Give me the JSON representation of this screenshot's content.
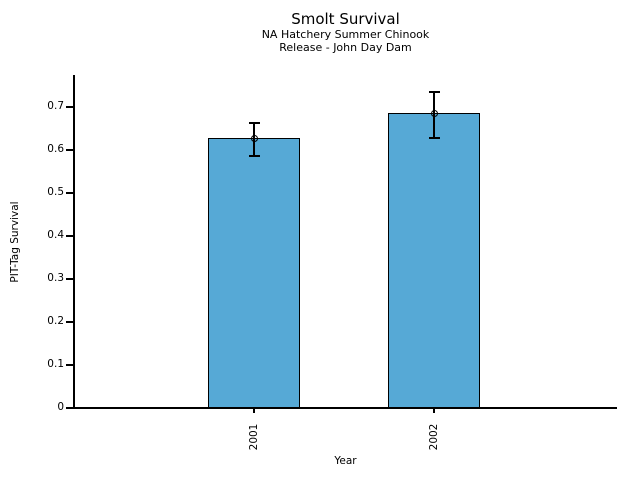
{
  "chart_data": {
    "type": "bar",
    "title": "Smolt Survival",
    "subtitle_line1": "NA Hatchery Summer Chinook",
    "subtitle_line2": "Release - John Day Dam",
    "xlabel": "Year",
    "ylabel": "PIT-Tag Survival",
    "categories": [
      "2001",
      "2002"
    ],
    "values": [
      0.627,
      0.686
    ],
    "error_bars": [
      {
        "low": 0.586,
        "high": 0.663
      },
      {
        "low": 0.628,
        "high": 0.735
      }
    ],
    "ylim": [
      0,
      0.775
    ],
    "yticks": [
      0,
      0.1,
      0.2,
      0.3,
      0.4,
      0.5,
      0.6,
      0.7
    ],
    "ytick_labels": [
      "0",
      "0.1",
      "0.2",
      "0.3",
      "0.4",
      "0.5",
      "0.6",
      "0.7"
    ],
    "grid": false,
    "legend": "none",
    "marker": "open-circle",
    "colors": {
      "bar_fill": "#56A9D6",
      "bar_edge": "#000000",
      "error_bar": "#000000",
      "text": "#000000",
      "background": "#FFFFFF"
    }
  }
}
